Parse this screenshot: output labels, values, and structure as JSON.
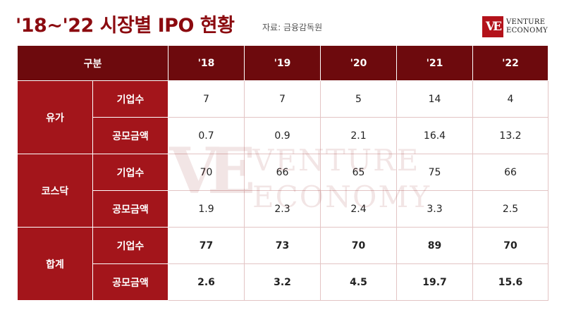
{
  "title": "'18~'22 시장별 IPO 현황",
  "source": "자료: 금융감독원",
  "logo": {
    "mark": "VE",
    "line1": "VENTURE",
    "line2": "ECONOMY"
  },
  "table": {
    "header": [
      "구분",
      "'18",
      "'19",
      "'20",
      "'21",
      "'22"
    ],
    "groups": [
      {
        "name": "유가",
        "rows": [
          {
            "label": "기업수",
            "values": [
              "7",
              "7",
              "5",
              "14",
              "4"
            ]
          },
          {
            "label": "공모금액",
            "values": [
              "0.7",
              "0.9",
              "2.1",
              "16.4",
              "13.2"
            ]
          }
        ]
      },
      {
        "name": "코스닥",
        "rows": [
          {
            "label": "기업수",
            "values": [
              "70",
              "66",
              "65",
              "75",
              "66"
            ]
          },
          {
            "label": "공모금액",
            "values": [
              "1.9",
              "2.3",
              "2.4",
              "3.3",
              "2.5"
            ]
          }
        ]
      },
      {
        "name": "합계",
        "rows": [
          {
            "label": "기업수",
            "values": [
              "77",
              "73",
              "70",
              "89",
              "70"
            ]
          },
          {
            "label": "공모금액",
            "values": [
              "2.6",
              "3.2",
              "4.5",
              "19.7",
              "15.6"
            ]
          }
        ]
      }
    ]
  },
  "colors": {
    "title": "#8b0a0f",
    "header_bg": "#6d0a0d",
    "label_bg": "#a3151b",
    "logo_bg": "#b3121a"
  }
}
